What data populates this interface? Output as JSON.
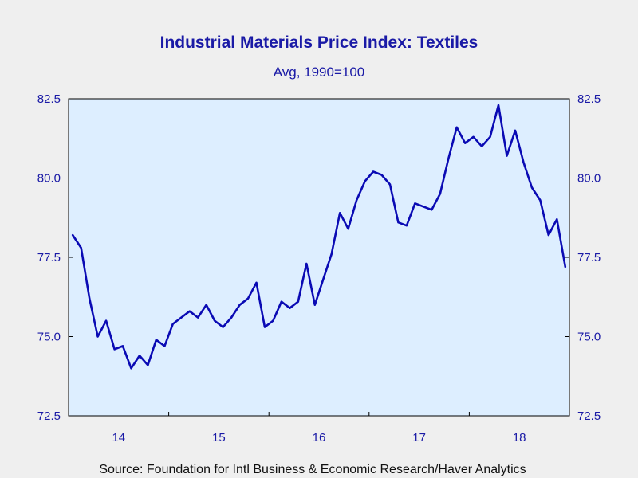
{
  "chart_data": {
    "type": "line",
    "title": "Industrial Materials Price Index: Textiles",
    "subtitle": "Avg, 1990=100",
    "source": "Source:  Foundation for Intl Business & Economic Research/Haver Analytics",
    "xlabel": "",
    "ylabel": "",
    "ylim": [
      72.5,
      82.5
    ],
    "y_ticks": [
      "82.5",
      "80.0",
      "77.5",
      "75.0",
      "72.5"
    ],
    "x_ticks": [
      "14",
      "15",
      "16",
      "17",
      "18"
    ],
    "x_range": [
      "2014-01",
      "2018-12"
    ],
    "grid": false,
    "legend": "none",
    "colors": {
      "line": "#0a0ab4",
      "plot_background": "#ddeeff",
      "text": "#1a1aa6"
    },
    "series": [
      {
        "x": [
          "2014-01",
          "2014-02",
          "2014-03",
          "2014-04",
          "2014-05",
          "2014-06",
          "2014-07",
          "2014-08",
          "2014-09",
          "2014-10",
          "2014-11",
          "2014-12",
          "2015-01",
          "2015-02",
          "2015-03",
          "2015-04",
          "2015-05",
          "2015-06",
          "2015-07",
          "2015-08",
          "2015-09",
          "2015-10",
          "2015-11",
          "2015-12",
          "2016-01",
          "2016-02",
          "2016-03",
          "2016-04",
          "2016-05",
          "2016-06",
          "2016-07",
          "2016-08",
          "2016-09",
          "2016-10",
          "2016-11",
          "2016-12",
          "2017-01",
          "2017-02",
          "2017-03",
          "2017-04",
          "2017-05",
          "2017-06",
          "2017-07",
          "2017-08",
          "2017-09",
          "2017-10",
          "2017-11",
          "2017-12",
          "2018-01",
          "2018-02",
          "2018-03",
          "2018-04",
          "2018-05",
          "2018-06",
          "2018-07",
          "2018-08",
          "2018-09",
          "2018-10",
          "2018-11",
          "2018-12"
        ],
        "values": [
          78.2,
          77.8,
          76.2,
          75.0,
          75.5,
          74.6,
          74.7,
          74.0,
          74.4,
          74.1,
          74.9,
          74.7,
          75.4,
          75.6,
          75.8,
          75.6,
          76.0,
          75.5,
          75.3,
          75.6,
          76.0,
          76.2,
          76.7,
          75.3,
          75.5,
          76.1,
          75.9,
          76.1,
          77.3,
          76.0,
          76.8,
          77.6,
          78.9,
          78.4,
          79.3,
          79.9,
          80.2,
          80.1,
          79.8,
          78.6,
          78.5,
          79.2,
          79.1,
          79.0,
          79.5,
          80.6,
          81.6,
          81.1,
          81.3,
          81.0,
          81.3,
          82.3,
          80.7,
          81.5,
          80.5,
          79.7,
          79.3,
          78.2,
          78.7,
          77.2
        ]
      }
    ]
  }
}
